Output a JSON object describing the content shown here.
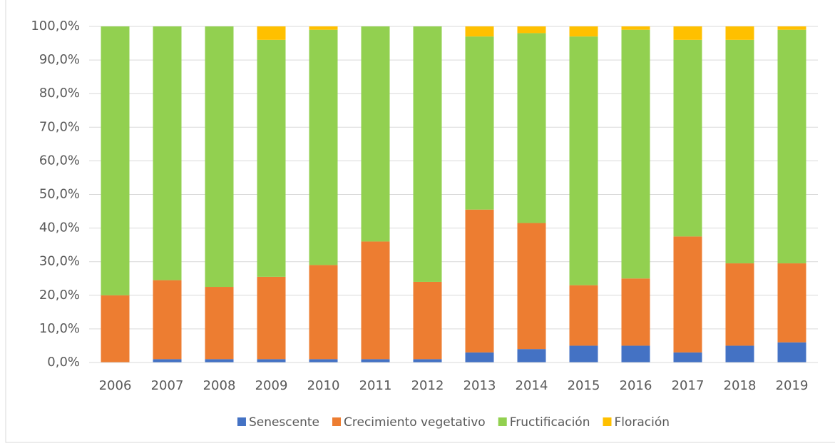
{
  "chart_data": {
    "type": "stacked_bar",
    "categories": [
      "2006",
      "2007",
      "2008",
      "2009",
      "2010",
      "2011",
      "2012",
      "2013",
      "2014",
      "2015",
      "2016",
      "2017",
      "2018",
      "2019"
    ],
    "series": [
      {
        "name": "Senescente",
        "color": "#4472c4",
        "values": [
          0,
          1,
          1,
          1,
          1,
          1,
          1,
          3,
          4,
          5,
          5,
          3,
          5,
          6
        ]
      },
      {
        "name": "Crecimiento vegetativo",
        "color": "#ed7d31",
        "values": [
          20,
          23.5,
          21.5,
          24.5,
          28,
          35,
          23,
          42.5,
          37.5,
          18,
          20,
          34.5,
          24.5,
          23.5
        ]
      },
      {
        "name": "Fructificación",
        "color": "#92d050",
        "values": [
          80,
          75.5,
          77.5,
          70.5,
          70,
          64,
          76,
          51.5,
          56.5,
          74,
          74,
          58.5,
          66.5,
          69.5
        ]
      },
      {
        "name": "Floración",
        "color": "#ffc000",
        "values": [
          0,
          0,
          0,
          4,
          1,
          0,
          0,
          3,
          2,
          3,
          1,
          4,
          4,
          1
        ]
      }
    ],
    "ylim": [
      0,
      100
    ],
    "yticks": [
      {
        "value": 0,
        "label": "0,0%"
      },
      {
        "value": 10,
        "label": "10,0%"
      },
      {
        "value": 20,
        "label": "20,0%"
      },
      {
        "value": 30,
        "label": "30,0%"
      },
      {
        "value": 40,
        "label": "40,0%"
      },
      {
        "value": 50,
        "label": "50,0%"
      },
      {
        "value": 60,
        "label": "60,0%"
      },
      {
        "value": 70,
        "label": "70,0%"
      },
      {
        "value": 80,
        "label": "80,0%"
      },
      {
        "value": 90,
        "label": "90,0%"
      },
      {
        "value": 100,
        "label": "100,0%"
      }
    ],
    "grid": true,
    "legend": "bottom"
  }
}
